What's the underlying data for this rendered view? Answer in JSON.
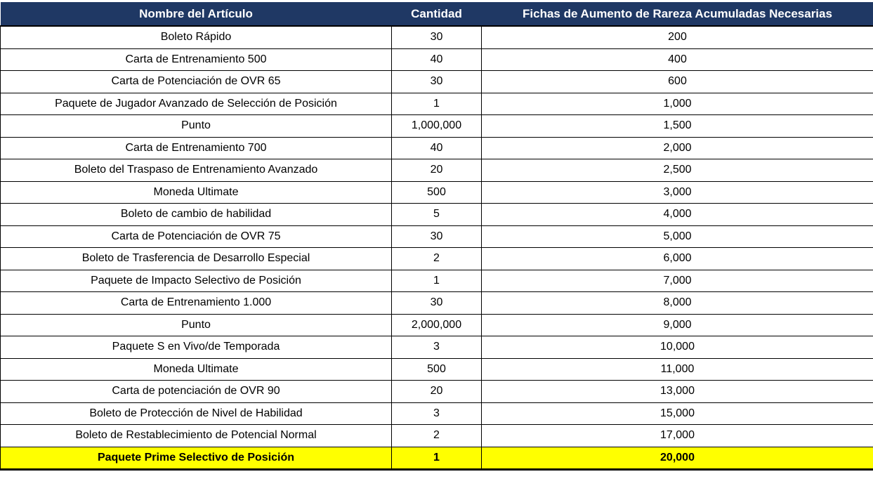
{
  "colors": {
    "header_bg": "#1F3864",
    "header_text": "#FFFFFF",
    "highlight_bg": "#FFFF00",
    "border": "#000000",
    "row_bg": "#FFFFFF",
    "row_text": "#000000"
  },
  "table": {
    "columns": [
      {
        "label": "Nombre del Artículo"
      },
      {
        "label": "Cantidad"
      },
      {
        "label": "Fichas de Aumento de Rareza Acumuladas Necesarias"
      }
    ],
    "rows": [
      {
        "name": "Boleto Rápido",
        "cantidad": "30",
        "fichas": "200",
        "highlight": false
      },
      {
        "name": "Carta de Entrenamiento 500",
        "cantidad": "40",
        "fichas": "400",
        "highlight": false
      },
      {
        "name": "Carta de Potenciación de OVR 65",
        "cantidad": "30",
        "fichas": "600",
        "highlight": false
      },
      {
        "name": "Paquete de Jugador Avanzado de Selección de Posición",
        "cantidad": "1",
        "fichas": "1,000",
        "highlight": false
      },
      {
        "name": "Punto",
        "cantidad": "1,000,000",
        "fichas": "1,500",
        "highlight": false
      },
      {
        "name": "Carta de Entrenamiento 700",
        "cantidad": "40",
        "fichas": "2,000",
        "highlight": false
      },
      {
        "name": "Boleto del Traspaso de Entrenamiento Avanzado",
        "cantidad": "20",
        "fichas": "2,500",
        "highlight": false
      },
      {
        "name": "Moneda Ultimate",
        "cantidad": "500",
        "fichas": "3,000",
        "highlight": false
      },
      {
        "name": "Boleto de cambio de habilidad",
        "cantidad": "5",
        "fichas": "4,000",
        "highlight": false
      },
      {
        "name": "Carta de Potenciación de OVR 75",
        "cantidad": "30",
        "fichas": "5,000",
        "highlight": false
      },
      {
        "name": "Boleto de Trasferencia de Desarrollo Especial",
        "cantidad": "2",
        "fichas": "6,000",
        "highlight": false
      },
      {
        "name": "Paquete de Impacto Selectivo de Posición",
        "cantidad": "1",
        "fichas": "7,000",
        "highlight": false
      },
      {
        "name": "Carta de Entrenamiento 1.000",
        "cantidad": "30",
        "fichas": "8,000",
        "highlight": false
      },
      {
        "name": "Punto",
        "cantidad": "2,000,000",
        "fichas": "9,000",
        "highlight": false
      },
      {
        "name": "Paquete S en Vivo/de Temporada",
        "cantidad": "3",
        "fichas": "10,000",
        "highlight": false
      },
      {
        "name": "Moneda Ultimate",
        "cantidad": "500",
        "fichas": "11,000",
        "highlight": false
      },
      {
        "name": "Carta de potenciación de OVR 90",
        "cantidad": "20",
        "fichas": "13,000",
        "highlight": false
      },
      {
        "name": "Boleto de Protección de Nivel de Habilidad",
        "cantidad": "3",
        "fichas": "15,000",
        "highlight": false
      },
      {
        "name": "Boleto de Restablecimiento de Potencial Normal",
        "cantidad": "2",
        "fichas": "17,000",
        "highlight": false
      },
      {
        "name": "Paquete Prime Selectivo de Posición",
        "cantidad": "1",
        "fichas": "20,000",
        "highlight": true
      }
    ]
  }
}
